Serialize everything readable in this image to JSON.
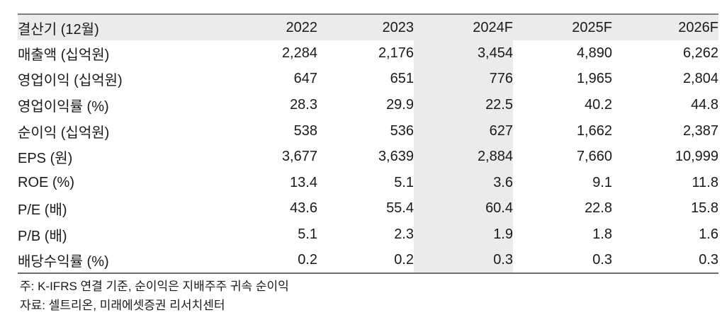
{
  "table": {
    "header": [
      "결산기 (12월)",
      "2022",
      "2023",
      "2024F",
      "2025F",
      "2026F"
    ],
    "highlight_column": "2024F",
    "rows": [
      {
        "label": "매출액 (십억원)",
        "values": [
          "2,284",
          "2,176",
          "3,454",
          "4,890",
          "6,262"
        ]
      },
      {
        "label": "영업이익 (십억원)",
        "values": [
          "647",
          "651",
          "776",
          "1,965",
          "2,804"
        ]
      },
      {
        "label": "영업이익률 (%)",
        "values": [
          "28.3",
          "29.9",
          "22.5",
          "40.2",
          "44.8"
        ]
      },
      {
        "label": "순이익 (십억원)",
        "values": [
          "538",
          "536",
          "627",
          "1,662",
          "2,387"
        ]
      },
      {
        "label": "EPS (원)",
        "values": [
          "3,677",
          "3,639",
          "2,884",
          "7,660",
          "10,999"
        ]
      },
      {
        "label": "ROE (%)",
        "values": [
          "13.4",
          "5.1",
          "3.6",
          "9.1",
          "11.8"
        ]
      },
      {
        "label": "P/E (배)",
        "values": [
          "43.6",
          "55.4",
          "60.4",
          "22.8",
          "15.8"
        ]
      },
      {
        "label": "P/B (배)",
        "values": [
          "5.1",
          "2.3",
          "1.9",
          "1.8",
          "1.6"
        ]
      },
      {
        "label": "배당수익률 (%)",
        "values": [
          "0.2",
          "0.2",
          "0.3",
          "0.3",
          "0.3"
        ]
      }
    ]
  },
  "notes": [
    "주: K-IFRS 연결 기준, 순이익은 지배주주 귀속 순이익",
    "자료: 셀트리온, 미래에셋증권 리서치센터"
  ],
  "colors": {
    "header_bg": "#ebebeb",
    "highlight_bg": "#ebebeb",
    "border_top": "#7e7e7e",
    "border_bottom": "#6e6e6e",
    "text": "#1a1a1a"
  }
}
